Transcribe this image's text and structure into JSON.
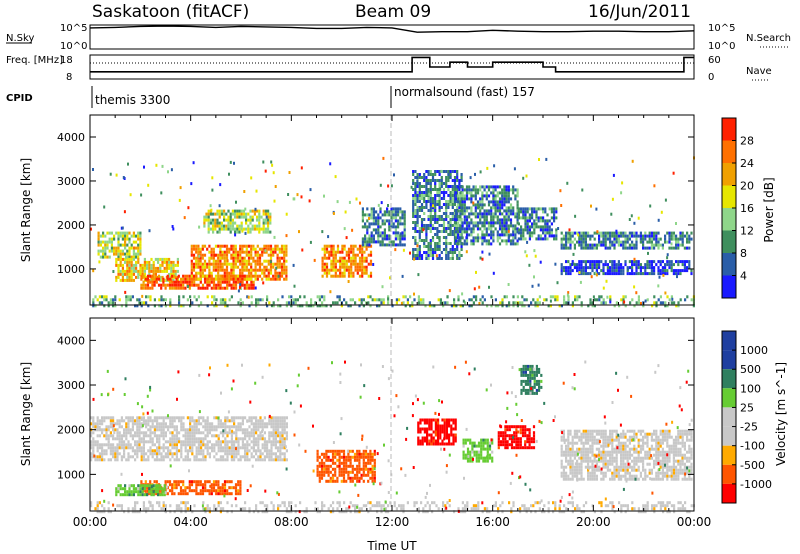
{
  "header": {
    "station": "Saskatoon (fitACF)",
    "beam": "Beam 09",
    "date": "16/Jun/2011"
  },
  "colors": {
    "power_scale": [
      "#1a1aff",
      "#2a5ea8",
      "#3f8f5e",
      "#8fd68a",
      "#e6e600",
      "#f0a000",
      "#ff7000",
      "#ff2000"
    ],
    "velocity_scale": [
      "#ff0000",
      "#ff5500",
      "#ffaa00",
      "#c8c8c8",
      "#c8c8c8",
      "#66cc33",
      "#2f7f5f",
      "#1f3fa0"
    ]
  },
  "chart_data": [
    {
      "type": "line",
      "name": "nsky-nsearch",
      "left_axis": {
        "label": "N.Sky",
        "ticks": [
          "10^5",
          "10^0"
        ]
      },
      "right_axis": {
        "label": "N.Search",
        "ticks": [
          "10^5",
          "10^0"
        ]
      },
      "x": [
        0,
        1,
        2,
        3,
        4,
        5,
        6,
        7,
        8,
        9,
        10,
        11,
        12,
        13,
        14,
        15,
        16,
        17,
        18,
        19,
        20,
        21,
        22,
        23,
        24
      ],
      "nsky_log10": [
        4.4,
        4.5,
        4.7,
        4.8,
        4.7,
        4.5,
        4.7,
        4.6,
        4.5,
        4.3,
        4.3,
        4.5,
        4.4,
        3.5,
        3.6,
        3.6,
        3.9,
        3.7,
        3.6,
        3.6,
        3.7,
        3.7,
        3.6,
        3.6,
        3.8
      ]
    },
    {
      "type": "line",
      "name": "freq-nave",
      "left_axis": {
        "label": "Freq. [MHz]",
        "ticks": [
          "18",
          "8"
        ]
      },
      "right_axis": {
        "label": "Nave",
        "ticks": [
          "60",
          "0"
        ]
      },
      "cpid_label": "CPID",
      "x": [
        0,
        12,
        12.8,
        13.5,
        14.3,
        15,
        16,
        17,
        17.5,
        18,
        18.5,
        19,
        23.6,
        24
      ],
      "freq_mhz": [
        11,
        11,
        17,
        13,
        15,
        13,
        15,
        15,
        15,
        13,
        11,
        11,
        17,
        17
      ],
      "nave": [
        40,
        40,
        40,
        40,
        40,
        40,
        40,
        40,
        40,
        40,
        40,
        40,
        40,
        40
      ],
      "cpid": [
        {
          "start": 0,
          "label": "themis 3300"
        },
        {
          "start": 12,
          "label": "normalsound (fast) 157"
        }
      ]
    },
    {
      "type": "heatmap",
      "name": "power",
      "xlabel": "",
      "ylabel": "Slant Range [km]",
      "ylim": [
        180,
        4500
      ],
      "yticks": [
        "1000",
        "2000",
        "3000",
        "4000"
      ],
      "colorbar": {
        "label": "Power [dB]",
        "ticks": [
          "4",
          "8",
          "12",
          "16",
          "20",
          "24",
          "28"
        ],
        "range": [
          0,
          32
        ]
      },
      "bands": [
        {
          "t0": 0.3,
          "t1": 2.0,
          "r0": 1300,
          "r1": 1850,
          "level": 16
        },
        {
          "t0": 1.0,
          "t1": 3.5,
          "r0": 750,
          "r1": 1250,
          "level": 20
        },
        {
          "t0": 2.0,
          "t1": 6.5,
          "r0": 580,
          "r1": 870,
          "level": 28
        },
        {
          "t0": 4.0,
          "t1": 7.8,
          "r0": 750,
          "r1": 1550,
          "level": 26
        },
        {
          "t0": 4.5,
          "t1": 7.2,
          "r0": 1850,
          "r1": 2350,
          "level": 16
        },
        {
          "t0": 9.2,
          "t1": 11.2,
          "r0": 850,
          "r1": 1550,
          "level": 24
        },
        {
          "t0": 10.8,
          "t1": 12.5,
          "r0": 1550,
          "r1": 2400,
          "level": 10
        },
        {
          "t0": 12.8,
          "t1": 14.8,
          "r0": 1250,
          "r1": 3250,
          "level": 9
        },
        {
          "t0": 14.5,
          "t1": 17.0,
          "r0": 1600,
          "r1": 2900,
          "level": 10
        },
        {
          "t0": 17.0,
          "t1": 18.5,
          "r0": 1700,
          "r1": 2400,
          "level": 9
        },
        {
          "t0": 18.7,
          "t1": 23.9,
          "r0": 1500,
          "r1": 1850,
          "level": 9
        },
        {
          "t0": 18.7,
          "t1": 23.9,
          "r0": 900,
          "r1": 1200,
          "level": 6
        },
        {
          "t0": 0.0,
          "t1": 24.0,
          "r0": 180,
          "r1": 400,
          "level": 12
        }
      ]
    },
    {
      "type": "heatmap",
      "name": "velocity",
      "xlabel": "Time UT",
      "ylabel": "Slant Range [km]",
      "ylim": [
        180,
        4500
      ],
      "yticks": [
        "1000",
        "2000",
        "3000",
        "4000"
      ],
      "xticks": [
        "00:00",
        "04:00",
        "08:00",
        "12:00",
        "16:00",
        "20:00",
        "00:00"
      ],
      "colorbar": {
        "label": "Velocity [m s^-1]",
        "ticks": [
          "-1000",
          "-500",
          "-100",
          "-25",
          "25",
          "100",
          "500",
          "1000"
        ]
      },
      "bands": [
        {
          "t0": 0.0,
          "t1": 7.8,
          "r0": 1300,
          "r1": 2300,
          "value": 0
        },
        {
          "t0": 2.0,
          "t1": 6.0,
          "r0": 580,
          "r1": 870,
          "value": -150
        },
        {
          "t0": 1.0,
          "t1": 3.0,
          "r0": 550,
          "r1": 780,
          "value": 150
        },
        {
          "t0": 9.0,
          "t1": 11.3,
          "r0": 850,
          "r1": 1550,
          "value": -300
        },
        {
          "t0": 13.0,
          "t1": 14.5,
          "r0": 1650,
          "r1": 2250,
          "value": -700
        },
        {
          "t0": 16.2,
          "t1": 17.6,
          "r0": 1600,
          "r1": 2100,
          "value": -700
        },
        {
          "t0": 17.1,
          "t1": 17.9,
          "r0": 2800,
          "r1": 3450,
          "value": 700
        },
        {
          "t0": 14.8,
          "t1": 16.0,
          "r0": 1300,
          "r1": 1800,
          "value": 300
        },
        {
          "t0": 18.7,
          "t1": 23.9,
          "r0": 900,
          "r1": 2000,
          "value": 0
        },
        {
          "t0": 0.0,
          "t1": 24.0,
          "r0": 180,
          "r1": 400,
          "value": 0
        }
      ]
    }
  ]
}
